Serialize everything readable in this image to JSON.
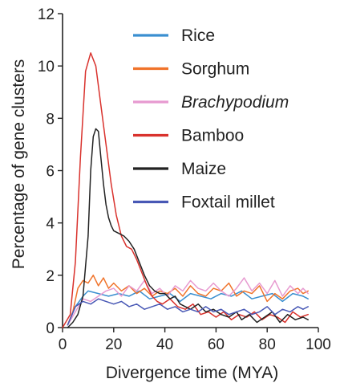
{
  "chart_data": {
    "type": "line",
    "xlabel": "Divergence time (MYA)",
    "ylabel": "Percentage of gene clusters",
    "xlim": [
      0,
      100
    ],
    "ylim": [
      0,
      12
    ],
    "xticks": [
      "0",
      "20",
      "40",
      "60",
      "80",
      "100"
    ],
    "yticks": [
      "0",
      "2",
      "4",
      "6",
      "8",
      "10",
      "12"
    ],
    "grid": false,
    "legend_position": "top-right",
    "series": [
      {
        "name": "Rice",
        "italic": false,
        "color": "#3a8fd0",
        "points": [
          [
            2,
            0.1
          ],
          [
            5,
            0.8
          ],
          [
            8,
            1.2
          ],
          [
            10,
            1.4
          ],
          [
            14,
            1.3
          ],
          [
            18,
            1.2
          ],
          [
            22,
            1.3
          ],
          [
            26,
            1.2
          ],
          [
            30,
            1.4
          ],
          [
            34,
            1.1
          ],
          [
            38,
            1.2
          ],
          [
            42,
            1.3
          ],
          [
            46,
            1.0
          ],
          [
            50,
            1.3
          ],
          [
            54,
            1.2
          ],
          [
            58,
            1.1
          ],
          [
            62,
            1.3
          ],
          [
            66,
            1.2
          ],
          [
            70,
            1.4
          ],
          [
            74,
            1.1
          ],
          [
            78,
            1.2
          ],
          [
            82,
            1.3
          ],
          [
            86,
            1.0
          ],
          [
            90,
            1.3
          ],
          [
            94,
            1.2
          ],
          [
            96,
            1.1
          ]
        ]
      },
      {
        "name": "Sorghum",
        "italic": false,
        "color": "#f0732a",
        "points": [
          [
            2,
            0.1
          ],
          [
            4,
            0.6
          ],
          [
            6,
            1.5
          ],
          [
            8,
            1.8
          ],
          [
            10,
            1.7
          ],
          [
            12,
            2.0
          ],
          [
            14,
            1.6
          ],
          [
            16,
            1.9
          ],
          [
            18,
            1.5
          ],
          [
            20,
            1.7
          ],
          [
            23,
            1.4
          ],
          [
            26,
            1.6
          ],
          [
            29,
            1.3
          ],
          [
            32,
            1.5
          ],
          [
            35,
            1.2
          ],
          [
            38,
            1.4
          ],
          [
            41,
            1.3
          ],
          [
            44,
            1.5
          ],
          [
            47,
            1.2
          ],
          [
            50,
            1.6
          ],
          [
            53,
            1.3
          ],
          [
            56,
            1.2
          ],
          [
            59,
            1.5
          ],
          [
            62,
            1.4
          ],
          [
            65,
            1.7
          ],
          [
            68,
            1.2
          ],
          [
            71,
            1.4
          ],
          [
            74,
            1.3
          ],
          [
            77,
            1.6
          ],
          [
            80,
            1.0
          ],
          [
            83,
            1.3
          ],
          [
            86,
            1.1
          ],
          [
            89,
            1.4
          ],
          [
            92,
            1.5
          ],
          [
            94,
            1.3
          ],
          [
            96,
            1.4
          ]
        ]
      },
      {
        "name": "Brachypodium",
        "italic": true,
        "color": "#e79ad0",
        "points": [
          [
            2,
            0.1
          ],
          [
            5,
            0.6
          ],
          [
            8,
            1.1
          ],
          [
            11,
            1.0
          ],
          [
            14,
            1.2
          ],
          [
            17,
            1.4
          ],
          [
            20,
            1.5
          ],
          [
            23,
            1.2
          ],
          [
            26,
            1.6
          ],
          [
            29,
            1.4
          ],
          [
            32,
            1.8
          ],
          [
            35,
            1.3
          ],
          [
            38,
            1.5
          ],
          [
            41,
            1.2
          ],
          [
            44,
            1.6
          ],
          [
            47,
            1.4
          ],
          [
            50,
            1.8
          ],
          [
            53,
            1.5
          ],
          [
            56,
            1.4
          ],
          [
            59,
            1.7
          ],
          [
            62,
            1.4
          ],
          [
            65,
            1.2
          ],
          [
            68,
            1.5
          ],
          [
            71,
            1.9
          ],
          [
            74,
            1.4
          ],
          [
            77,
            1.7
          ],
          [
            80,
            1.3
          ],
          [
            83,
            1.8
          ],
          [
            86,
            1.2
          ],
          [
            89,
            1.6
          ],
          [
            92,
            1.3
          ],
          [
            94,
            1.5
          ],
          [
            96,
            1.3
          ]
        ]
      },
      {
        "name": "Bamboo",
        "italic": false,
        "color": "#d9322d",
        "points": [
          [
            0,
            0
          ],
          [
            3,
            0.5
          ],
          [
            5,
            2.5
          ],
          [
            7,
            6.5
          ],
          [
            9,
            9.8
          ],
          [
            11,
            10.5
          ],
          [
            13,
            10.0
          ],
          [
            15,
            8.5
          ],
          [
            17,
            7.0
          ],
          [
            19,
            5.5
          ],
          [
            21,
            4.3
          ],
          [
            23,
            3.5
          ],
          [
            25,
            3.1
          ],
          [
            27,
            3.0
          ],
          [
            29,
            2.6
          ],
          [
            31,
            2.1
          ],
          [
            33,
            1.6
          ],
          [
            35,
            1.2
          ],
          [
            37,
            1.0
          ],
          [
            39,
            0.9
          ],
          [
            42,
            1.1
          ],
          [
            45,
            0.8
          ],
          [
            48,
            0.7
          ],
          [
            51,
            0.9
          ],
          [
            54,
            0.5
          ],
          [
            57,
            0.6
          ],
          [
            60,
            0.4
          ],
          [
            63,
            0.6
          ],
          [
            66,
            0.3
          ],
          [
            69,
            0.5
          ],
          [
            72,
            0.4
          ],
          [
            75,
            0.6
          ],
          [
            78,
            0.3
          ],
          [
            81,
            0.5
          ],
          [
            84,
            0.4
          ],
          [
            87,
            0.2
          ],
          [
            90,
            0.6
          ],
          [
            93,
            0.4
          ],
          [
            96,
            0.5
          ]
        ]
      },
      {
        "name": "Maize",
        "italic": false,
        "color": "#222222",
        "points": [
          [
            2,
            0
          ],
          [
            4,
            0.2
          ],
          [
            6,
            0.5
          ],
          [
            8,
            1.2
          ],
          [
            10,
            3.5
          ],
          [
            11,
            6.0
          ],
          [
            12,
            7.3
          ],
          [
            13,
            7.6
          ],
          [
            14,
            7.5
          ],
          [
            15,
            6.5
          ],
          [
            16,
            5.5
          ],
          [
            17,
            4.7
          ],
          [
            18,
            4.2
          ],
          [
            19,
            3.9
          ],
          [
            20,
            3.7
          ],
          [
            22,
            3.6
          ],
          [
            24,
            3.5
          ],
          [
            26,
            3.3
          ],
          [
            28,
            3.0
          ],
          [
            30,
            2.5
          ],
          [
            32,
            2.0
          ],
          [
            34,
            1.6
          ],
          [
            36,
            1.4
          ],
          [
            38,
            1.3
          ],
          [
            40,
            1.3
          ],
          [
            42,
            1.1
          ],
          [
            44,
            1.2
          ],
          [
            46,
            0.9
          ],
          [
            48,
            0.8
          ],
          [
            50,
            0.7
          ],
          [
            53,
            0.9
          ],
          [
            56,
            0.6
          ],
          [
            59,
            0.7
          ],
          [
            62,
            0.5
          ],
          [
            65,
            0.4
          ],
          [
            68,
            0.6
          ],
          [
            70,
            0.3
          ],
          [
            73,
            0.5
          ],
          [
            76,
            0.2
          ],
          [
            79,
            0.4
          ],
          [
            82,
            0.6
          ],
          [
            85,
            0.2
          ],
          [
            88,
            0.5
          ],
          [
            91,
            0.3
          ],
          [
            94,
            0.4
          ],
          [
            96,
            0.3
          ]
        ]
      },
      {
        "name": "Foxtail millet",
        "italic": false,
        "color": "#4858b5",
        "points": [
          [
            2,
            0.1
          ],
          [
            5,
            0.8
          ],
          [
            8,
            1.0
          ],
          [
            11,
            0.9
          ],
          [
            14,
            1.1
          ],
          [
            17,
            1.0
          ],
          [
            20,
            0.9
          ],
          [
            23,
            1.0
          ],
          [
            26,
            0.8
          ],
          [
            29,
            0.9
          ],
          [
            32,
            0.7
          ],
          [
            35,
            0.8
          ],
          [
            38,
            0.9
          ],
          [
            41,
            0.7
          ],
          [
            44,
            0.8
          ],
          [
            47,
            0.6
          ],
          [
            50,
            0.7
          ],
          [
            53,
            0.6
          ],
          [
            56,
            0.8
          ],
          [
            59,
            0.6
          ],
          [
            62,
            0.7
          ],
          [
            65,
            0.5
          ],
          [
            68,
            0.6
          ],
          [
            71,
            0.7
          ],
          [
            74,
            0.5
          ],
          [
            77,
            0.6
          ],
          [
            80,
            0.8
          ],
          [
            83,
            0.5
          ],
          [
            86,
            0.7
          ],
          [
            89,
            0.6
          ],
          [
            92,
            0.8
          ],
          [
            94,
            0.7
          ],
          [
            96,
            0.8
          ]
        ]
      }
    ]
  }
}
